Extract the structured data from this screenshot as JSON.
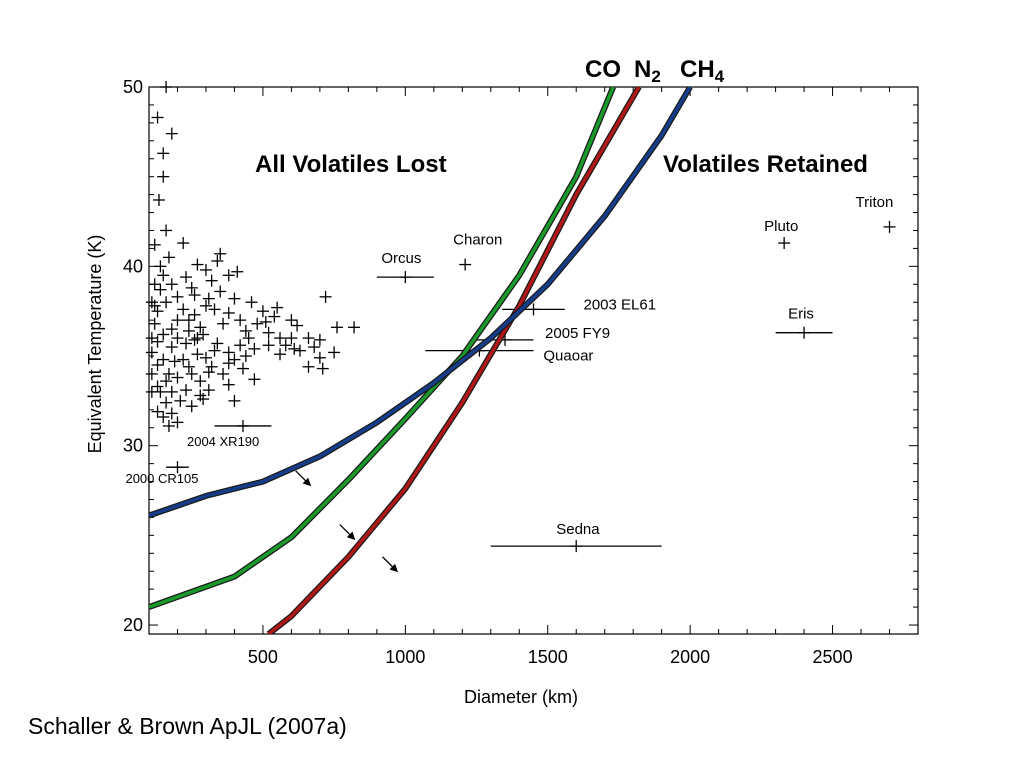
{
  "chart_data": {
    "type": "scatter",
    "xlabel": "Diameter (km)",
    "ylabel": "Equivalent Temperature (K)",
    "xlim": [
      100,
      2800
    ],
    "ylim": [
      19.5,
      50
    ],
    "x_ticks": [
      500,
      1000,
      1500,
      2000,
      2500
    ],
    "y_ticks": [
      20,
      30,
      40,
      50
    ],
    "grid": false,
    "annotations": {
      "lost": "All Volatiles Lost",
      "retained": "Volatiles Retained"
    },
    "curves": [
      {
        "name": "CO",
        "color": "#1a9a2a",
        "points": [
          [
            100,
            21.0
          ],
          [
            400,
            22.7
          ],
          [
            600,
            24.9
          ],
          [
            800,
            28.1
          ],
          [
            1000,
            31.5
          ],
          [
            1200,
            35.0
          ],
          [
            1400,
            39.5
          ],
          [
            1600,
            45.0
          ],
          [
            1730,
            50.0
          ]
        ]
      },
      {
        "name": "N2",
        "color": "#b01818",
        "points": [
          [
            520,
            19.5
          ],
          [
            600,
            20.5
          ],
          [
            800,
            23.8
          ],
          [
            1000,
            27.6
          ],
          [
            1200,
            32.4
          ],
          [
            1400,
            37.8
          ],
          [
            1600,
            44.0
          ],
          [
            1820,
            50.0
          ]
        ]
      },
      {
        "name": "CH4",
        "color": "#153d8a",
        "points": [
          [
            100,
            26.1
          ],
          [
            300,
            27.2
          ],
          [
            500,
            28.0
          ],
          [
            700,
            29.4
          ],
          [
            900,
            31.3
          ],
          [
            1100,
            33.5
          ],
          [
            1300,
            36.0
          ],
          [
            1500,
            39.0
          ],
          [
            1700,
            42.8
          ],
          [
            1900,
            47.3
          ],
          [
            2000,
            50.0
          ]
        ]
      }
    ],
    "curve_labels": {
      "co": "CO",
      "n2_base": "N",
      "n2_sub": "2",
      "ch4_base": "CH",
      "ch4_sub": "4"
    },
    "arrows": [
      {
        "x": 615,
        "y": 28.6
      },
      {
        "x": 770,
        "y": 25.6
      },
      {
        "x": 920,
        "y": 23.8
      }
    ],
    "objects": [
      {
        "name": "Triton",
        "x": 2700,
        "y": 42.2,
        "err": 0,
        "label_small": false
      },
      {
        "name": "Pluto",
        "x": 2330,
        "y": 41.3,
        "err": 0,
        "label_small": false
      },
      {
        "name": "Eris",
        "x": 2400,
        "y": 36.3,
        "err": 100,
        "label_small": false
      },
      {
        "name": "Charon",
        "x": 1210,
        "y": 40.1,
        "err": 0,
        "label_small": false
      },
      {
        "name": "Orcus",
        "x": 1000,
        "y": 39.4,
        "err": 100,
        "label_small": false
      },
      {
        "name": "2003 EL61",
        "x": 1450,
        "y": 37.6,
        "err": 110,
        "label_small": false
      },
      {
        "name": "2005 FY9",
        "x": 1350,
        "y": 35.9,
        "err": 100,
        "label_small": false
      },
      {
        "name": "Quaoar",
        "x": 1260,
        "y": 35.3,
        "err": 190,
        "label_small": false
      },
      {
        "name": "Sedna",
        "x": 1600,
        "y": 24.4,
        "err": 300,
        "label_small": false
      },
      {
        "name": "2004 XR190",
        "x": 430,
        "y": 31.1,
        "err": 100,
        "label_small": true
      },
      {
        "name": "2000 CR105",
        "x": 200,
        "y": 28.8,
        "err": 40,
        "label_small": true
      }
    ],
    "population": [
      [
        160,
        50
      ],
      [
        130,
        48.3
      ],
      [
        180,
        47.4
      ],
      [
        150,
        46.3
      ],
      [
        150,
        45.0
      ],
      [
        135,
        43.7
      ],
      [
        160,
        42.0
      ],
      [
        120,
        41.2
      ],
      [
        220,
        41.3
      ],
      [
        350,
        40.7
      ],
      [
        340,
        40.3
      ],
      [
        270,
        40.1
      ],
      [
        300,
        39.8
      ],
      [
        380,
        39.5
      ],
      [
        410,
        39.7
      ],
      [
        320,
        39.2
      ],
      [
        250,
        38.8
      ],
      [
        180,
        39.0
      ],
      [
        140,
        38.7
      ],
      [
        200,
        38.3
      ],
      [
        400,
        38.2
      ],
      [
        460,
        38.0
      ],
      [
        300,
        37.8
      ],
      [
        330,
        37.6
      ],
      [
        220,
        37.6
      ],
      [
        260,
        37.3
      ],
      [
        500,
        37.5
      ],
      [
        540,
        37.2
      ],
      [
        600,
        37.0
      ],
      [
        720,
        38.3
      ],
      [
        820,
        36.6
      ],
      [
        760,
        36.6
      ],
      [
        360,
        36.8
      ],
      [
        280,
        36.6
      ],
      [
        240,
        36.4
      ],
      [
        180,
        36.5
      ],
      [
        150,
        36.2
      ],
      [
        440,
        36.4
      ],
      [
        520,
        36.3
      ],
      [
        600,
        36.0
      ],
      [
        660,
        36.0
      ],
      [
        700,
        35.9
      ],
      [
        580,
        35.6
      ],
      [
        520,
        35.6
      ],
      [
        470,
        35.4
      ],
      [
        420,
        35.6
      ],
      [
        380,
        35.2
      ],
      [
        330,
        35.3
      ],
      [
        300,
        34.9
      ],
      [
        270,
        35.1
      ],
      [
        220,
        34.8
      ],
      [
        190,
        34.7
      ],
      [
        150,
        34.8
      ],
      [
        130,
        34.5
      ],
      [
        110,
        35.2
      ],
      [
        110,
        36.0
      ],
      [
        120,
        36.8
      ],
      [
        130,
        37.5
      ],
      [
        110,
        38.0
      ],
      [
        120,
        39.0
      ],
      [
        140,
        40.0
      ],
      [
        170,
        40.5
      ],
      [
        230,
        39.4
      ],
      [
        260,
        38.4
      ],
      [
        350,
        38.6
      ],
      [
        420,
        37.0
      ],
      [
        480,
        36.8
      ],
      [
        560,
        36.0
      ],
      [
        630,
        35.3
      ],
      [
        680,
        35.5
      ],
      [
        750,
        35.2
      ],
      [
        660,
        34.4
      ],
      [
        710,
        34.3
      ],
      [
        430,
        34.3
      ],
      [
        360,
        34.0
      ],
      [
        320,
        34.4
      ],
      [
        250,
        34.0
      ],
      [
        200,
        33.8
      ],
      [
        160,
        33.6
      ],
      [
        130,
        33.3
      ],
      [
        180,
        33.0
      ],
      [
        230,
        33.1
      ],
      [
        280,
        32.8
      ],
      [
        210,
        32.5
      ],
      [
        250,
        32.2
      ],
      [
        160,
        32.4
      ],
      [
        290,
        32.6
      ],
      [
        400,
        32.5
      ],
      [
        180,
        31.8
      ],
      [
        150,
        31.6
      ],
      [
        170,
        31.1
      ],
      [
        130,
        31.9
      ],
      [
        200,
        31.3
      ],
      [
        280,
        33.6
      ],
      [
        310,
        33.1
      ],
      [
        380,
        33.4
      ],
      [
        560,
        35.1
      ],
      [
        610,
        35.4
      ],
      [
        470,
        33.7
      ],
      [
        230,
        35.7
      ],
      [
        170,
        34.0
      ],
      [
        140,
        33.0
      ],
      [
        110,
        34.0
      ],
      [
        110,
        33.0
      ],
      [
        290,
        36.2
      ],
      [
        340,
        35.7
      ],
      [
        400,
        34.8
      ],
      [
        440,
        35.0
      ],
      [
        200,
        36.0
      ],
      [
        260,
        35.9
      ],
      [
        120,
        37.8
      ],
      [
        150,
        39.5
      ],
      [
        200,
        37.0
      ],
      [
        240,
        37.0
      ],
      [
        310,
        38.2
      ],
      [
        380,
        37.4
      ],
      [
        450,
        36.0
      ],
      [
        510,
        36.9
      ],
      [
        550,
        37.7
      ],
      [
        620,
        36.7
      ],
      [
        700,
        34.9
      ],
      [
        380,
        34.6
      ],
      [
        310,
        34.1
      ],
      [
        240,
        34.4
      ],
      [
        180,
        35.5
      ],
      [
        130,
        35.8
      ],
      [
        160,
        38.0
      ],
      [
        270,
        36.0
      ]
    ]
  },
  "citation": "Schaller & Brown ApJL (2007a)"
}
